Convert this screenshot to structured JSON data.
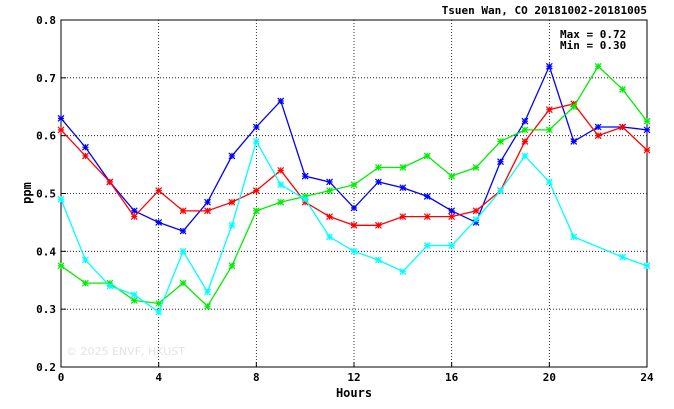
{
  "chart_data": {
    "type": "line",
    "title": "Tsuen Wan, CO 20181002-20181005",
    "xlabel": "Hours",
    "ylabel": "ppm",
    "xlim": [
      0,
      24
    ],
    "ylim": [
      0.2,
      0.8
    ],
    "xticks": [
      0,
      4,
      8,
      12,
      16,
      20,
      24
    ],
    "yticks": [
      0.2,
      0.3,
      0.4,
      0.5,
      0.6,
      0.7,
      0.8
    ],
    "xtick_labels": [
      "0",
      "4",
      "8",
      "12",
      "16",
      "20",
      "24"
    ],
    "ytick_labels": [
      "0.2",
      "0.3",
      "0.4",
      "0.5",
      "0.6",
      "0.7",
      "0.8"
    ],
    "grid": true,
    "max_label": "Max = 0.72",
    "min_label": "Min = 0.30",
    "watermark": "© 2025  ENVF, HKUST",
    "x": [
      0,
      1,
      2,
      3,
      4,
      5,
      6,
      7,
      8,
      9,
      10,
      11,
      12,
      13,
      14,
      15,
      16,
      17,
      18,
      19,
      20,
      21,
      22,
      23,
      24
    ],
    "series": [
      {
        "color": "#0000ff",
        "values": [
          0.63,
          0.58,
          0.52,
          0.47,
          0.45,
          0.435,
          0.485,
          0.565,
          0.615,
          0.66,
          0.53,
          0.52,
          0.475,
          0.52,
          0.51,
          0.495,
          0.47,
          0.45,
          0.555,
          0.625,
          0.72,
          0.59,
          0.615,
          0.615,
          0.61
        ]
      },
      {
        "color": "#ff0000",
        "values": [
          0.61,
          0.565,
          0.52,
          0.46,
          0.505,
          0.47,
          0.47,
          0.485,
          0.505,
          0.54,
          0.485,
          0.46,
          0.445,
          0.445,
          0.46,
          0.46,
          0.46,
          0.47,
          0.505,
          0.59,
          0.645,
          0.655,
          0.6,
          0.615,
          0.575
        ]
      },
      {
        "color": "#00ee00",
        "values": [
          0.375,
          0.345,
          0.345,
          0.315,
          0.31,
          0.345,
          0.305,
          0.375,
          0.47,
          0.485,
          0.495,
          0.505,
          0.515,
          0.545,
          0.545,
          0.565,
          0.53,
          0.545,
          0.59,
          0.61,
          0.61,
          0.65,
          0.72,
          0.68,
          0.625
        ]
      },
      {
        "color": "#00ffff",
        "values": [
          0.49,
          0.385,
          0.34,
          0.325,
          0.295,
          0.4,
          0.33,
          0.445,
          0.59,
          0.515,
          0.49,
          0.425,
          0.4,
          0.385,
          0.365,
          0.41,
          0.41,
          0.455,
          0.505,
          0.565,
          0.52,
          0.425,
          null,
          0.39,
          0.375
        ]
      }
    ]
  }
}
